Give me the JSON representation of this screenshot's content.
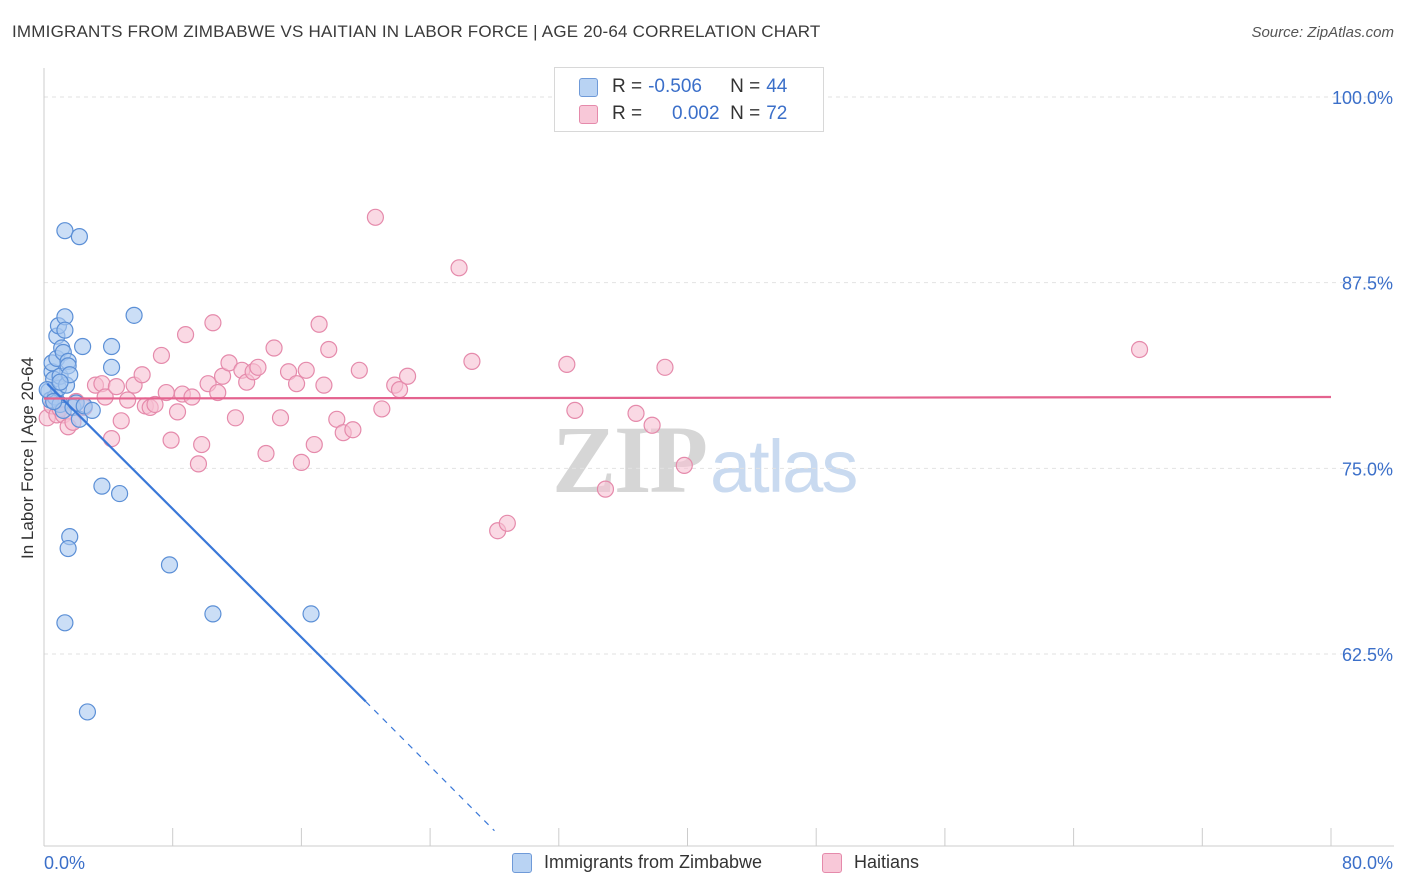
{
  "title": "IMMIGRANTS FROM ZIMBABWE VS HAITIAN IN LABOR FORCE | AGE 20-64 CORRELATION CHART",
  "source": "Source: ZipAtlas.com",
  "watermark": {
    "zip": "ZIP",
    "atlas": "atlas"
  },
  "colors": {
    "blue_fill": "#a9c8f0",
    "blue_stroke": "#5b8fd6",
    "blue_line": "#3a78d8",
    "pink_fill": "#f6bfd2",
    "pink_stroke": "#e58aab",
    "pink_line": "#e4638f",
    "grid": "#e2e2e2",
    "tick_label": "#3b6fc9"
  },
  "legend": {
    "r_label": "R =",
    "n_label": "N =",
    "rows": [
      {
        "r": "-0.506",
        "n": "44",
        "color": "blue"
      },
      {
        "r": "0.002",
        "n": "72",
        "color": "pink"
      }
    ]
  },
  "bottom_legend": [
    "Immigrants from Zimbabwe",
    "Haitians"
  ],
  "chart_data": {
    "type": "scatter",
    "title": "IMMIGRANTS FROM ZIMBABWE VS HAITIAN IN LABOR FORCE | AGE 20-64 CORRELATION CHART",
    "xlabel": "",
    "ylabel": "In Labor Force | Age 20-64",
    "xlim": [
      0,
      80
    ],
    "ylim": [
      50,
      102
    ],
    "x_tick_labels": [
      "0.0%",
      "80.0%"
    ],
    "y_ticks": [
      62.5,
      75.0,
      87.5,
      100.0
    ],
    "y_tick_labels": [
      "62.5%",
      "75.0%",
      "87.5%",
      "100.0%"
    ],
    "grid": true,
    "legend_position": "top-center",
    "series": [
      {
        "name": "Immigrants from Zimbabwe",
        "color": "blue",
        "r": -0.506,
        "n": 44,
        "trend": {
          "x": [
            0.2,
            20.0
          ],
          "y": [
            80.7,
            59.3
          ],
          "dashed_to": [
            28.0,
            50.6
          ]
        },
        "points": [
          [
            0.3,
            80.2
          ],
          [
            0.4,
            79.6
          ],
          [
            0.5,
            81.5
          ],
          [
            0.5,
            82.1
          ],
          [
            0.6,
            81.0
          ],
          [
            0.7,
            79.8
          ],
          [
            0.8,
            82.4
          ],
          [
            0.8,
            83.9
          ],
          [
            0.9,
            84.6
          ],
          [
            0.9,
            80.4
          ],
          [
            1.0,
            81.2
          ],
          [
            1.0,
            79.3
          ],
          [
            1.1,
            83.1
          ],
          [
            1.2,
            82.8
          ],
          [
            1.3,
            85.2
          ],
          [
            1.3,
            84.3
          ],
          [
            1.4,
            80.6
          ],
          [
            1.5,
            82.2
          ],
          [
            1.5,
            81.9
          ],
          [
            1.6,
            81.3
          ],
          [
            1.2,
            78.9
          ],
          [
            1.8,
            79.1
          ],
          [
            2.0,
            79.4
          ],
          [
            2.2,
            78.3
          ],
          [
            2.4,
            83.2
          ],
          [
            2.5,
            79.2
          ],
          [
            3.0,
            78.9
          ],
          [
            1.3,
            91.0
          ],
          [
            2.2,
            90.6
          ],
          [
            5.6,
            85.3
          ],
          [
            4.2,
            83.2
          ],
          [
            4.2,
            81.8
          ],
          [
            3.6,
            73.8
          ],
          [
            4.7,
            73.3
          ],
          [
            1.6,
            70.4
          ],
          [
            1.5,
            69.6
          ],
          [
            7.8,
            68.5
          ],
          [
            10.5,
            65.2
          ],
          [
            16.6,
            65.2
          ],
          [
            1.3,
            64.6
          ],
          [
            2.7,
            58.6
          ],
          [
            0.2,
            80.3
          ],
          [
            0.6,
            79.5
          ],
          [
            1.0,
            80.8
          ]
        ]
      },
      {
        "name": "Haitians",
        "color": "pink",
        "r": 0.002,
        "n": 72,
        "trend": {
          "x": [
            0.0,
            80.0
          ],
          "y": [
            79.7,
            79.8
          ]
        },
        "points": [
          [
            0.2,
            78.4
          ],
          [
            0.5,
            79.2
          ],
          [
            0.8,
            78.6
          ],
          [
            1.0,
            79.0
          ],
          [
            1.2,
            78.6
          ],
          [
            1.5,
            77.8
          ],
          [
            1.8,
            78.1
          ],
          [
            2.0,
            79.5
          ],
          [
            2.5,
            79.1
          ],
          [
            3.2,
            80.6
          ],
          [
            3.6,
            80.7
          ],
          [
            3.8,
            79.8
          ],
          [
            4.2,
            77.0
          ],
          [
            4.5,
            80.5
          ],
          [
            4.8,
            78.2
          ],
          [
            5.2,
            79.6
          ],
          [
            5.6,
            80.6
          ],
          [
            6.1,
            81.3
          ],
          [
            6.3,
            79.2
          ],
          [
            6.6,
            79.1
          ],
          [
            6.9,
            79.3
          ],
          [
            7.3,
            82.6
          ],
          [
            7.6,
            80.1
          ],
          [
            7.9,
            76.9
          ],
          [
            8.3,
            78.8
          ],
          [
            8.6,
            80.0
          ],
          [
            8.8,
            84.0
          ],
          [
            9.2,
            79.8
          ],
          [
            9.6,
            75.3
          ],
          [
            9.8,
            76.6
          ],
          [
            10.2,
            80.7
          ],
          [
            10.5,
            84.8
          ],
          [
            10.8,
            80.1
          ],
          [
            11.1,
            81.2
          ],
          [
            11.5,
            82.1
          ],
          [
            11.9,
            78.4
          ],
          [
            12.3,
            81.6
          ],
          [
            12.6,
            80.8
          ],
          [
            13.0,
            81.5
          ],
          [
            13.3,
            81.8
          ],
          [
            13.8,
            76.0
          ],
          [
            14.3,
            83.1
          ],
          [
            14.7,
            78.4
          ],
          [
            15.2,
            81.5
          ],
          [
            15.7,
            80.7
          ],
          [
            16.0,
            75.4
          ],
          [
            16.3,
            81.6
          ],
          [
            16.8,
            76.6
          ],
          [
            17.1,
            84.7
          ],
          [
            17.4,
            80.6
          ],
          [
            17.7,
            83.0
          ],
          [
            18.2,
            78.3
          ],
          [
            18.6,
            77.4
          ],
          [
            19.2,
            77.6
          ],
          [
            19.6,
            81.6
          ],
          [
            20.6,
            91.9
          ],
          [
            21.0,
            79.0
          ],
          [
            21.8,
            80.6
          ],
          [
            22.1,
            80.3
          ],
          [
            22.6,
            81.2
          ],
          [
            25.8,
            88.5
          ],
          [
            26.6,
            82.2
          ],
          [
            28.2,
            70.8
          ],
          [
            28.8,
            71.3
          ],
          [
            32.5,
            82.0
          ],
          [
            33.0,
            78.9
          ],
          [
            34.9,
            73.6
          ],
          [
            36.8,
            78.7
          ],
          [
            37.8,
            77.9
          ],
          [
            38.6,
            81.8
          ],
          [
            39.8,
            75.2
          ],
          [
            68.1,
            83.0
          ]
        ]
      }
    ]
  }
}
